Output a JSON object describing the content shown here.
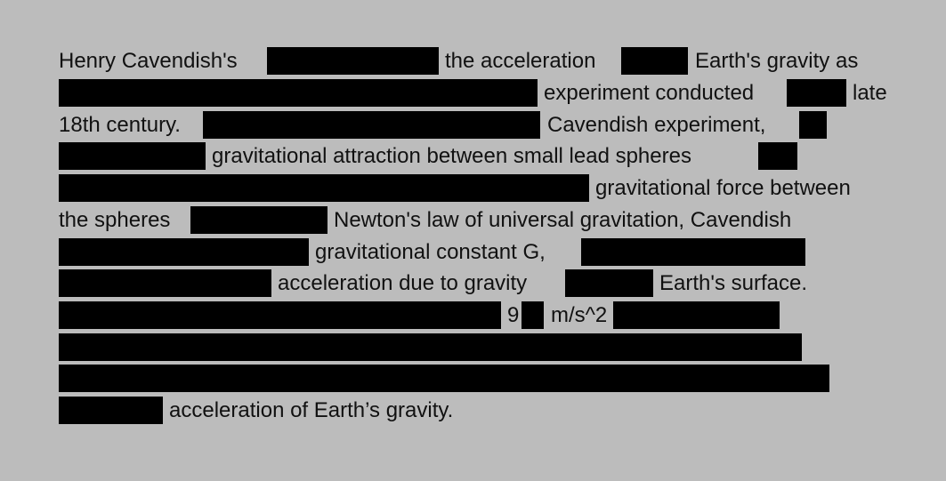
{
  "document": {
    "lines": [
      [
        "Henry Cavendish's",
        "the acceleration",
        "Earth's gravity as"
      ],
      [
        "experiment conducted",
        "late"
      ],
      [
        "18th century.",
        "Cavendish experiment,"
      ],
      [
        "gravitational attraction between small lead spheres"
      ],
      [
        "gravitational force between"
      ],
      [
        "the spheres",
        "Newton's law of universal gravitation, Cavendish"
      ],
      [
        "gravitational constant G,"
      ],
      [
        "acceleration due to gravity",
        "Earth's surface."
      ],
      [
        "9",
        "m/s^2"
      ],
      [],
      [],
      [
        "acceleration of Earth’s gravity."
      ]
    ]
  }
}
